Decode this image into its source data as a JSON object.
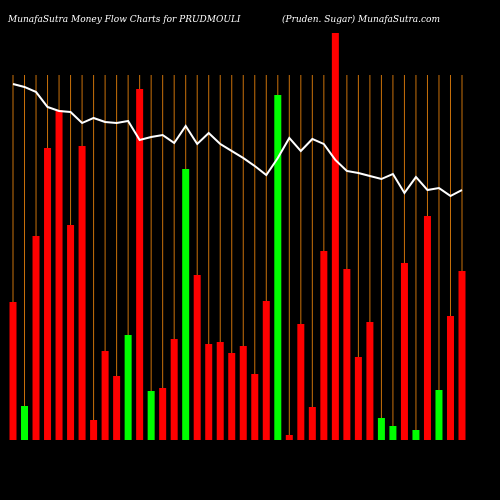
{
  "chart_data": {
    "type": "bar",
    "title": "MunafaSutra  Money Flow  Charts for PRUDMOULI",
    "subtitle": "(Pruden. Sugar) MunafaSutra.com",
    "categories": [
      null,
      null,
      null,
      null,
      null,
      null,
      null,
      null,
      null,
      null,
      null,
      null,
      null,
      null,
      null,
      null,
      null,
      null,
      null,
      null,
      null,
      null,
      null,
      null,
      null,
      null,
      null,
      null,
      null,
      null,
      null,
      null,
      null,
      null,
      null,
      null,
      null,
      null,
      null,
      null
    ],
    "ylim": [
      0,
      410
    ],
    "series": [
      {
        "kind": "bar",
        "values": [
          138,
          34,
          204,
          292,
          330,
          215,
          294,
          20,
          89,
          64,
          105,
          351,
          49,
          52,
          101,
          271,
          165,
          96,
          98,
          87,
          94,
          66,
          139,
          345,
          5,
          116,
          33,
          189,
          407,
          171,
          83,
          118,
          22,
          14,
          177,
          10,
          224,
          50,
          124,
          169
        ],
        "colors": [
          "#ff0000",
          "#00ff00",
          "#ff0000",
          "#ff0000",
          "#ff0000",
          "#ff0000",
          "#ff0000",
          "#ff0000",
          "#ff0000",
          "#ff0000",
          "#00ff00",
          "#ff0000",
          "#00ff00",
          "#ff0000",
          "#ff0000",
          "#00ff00",
          "#ff0000",
          "#ff0000",
          "#ff0000",
          "#ff0000",
          "#ff0000",
          "#ff0000",
          "#ff0000",
          "#00ff00",
          "#ff0000",
          "#ff0000",
          "#ff0000",
          "#ff0000",
          "#ff0000",
          "#ff0000",
          "#ff0000",
          "#ff0000",
          "#00ff00",
          "#00ff00",
          "#ff0000",
          "#00ff00",
          "#ff0000",
          "#00ff00",
          "#ff0000",
          "#ff0000"
        ]
      },
      {
        "kind": "line",
        "color": "#ffffff",
        "values": [
          356,
          353,
          348,
          333,
          329,
          328,
          317,
          322,
          318,
          317,
          319,
          300,
          303,
          305,
          297,
          314,
          296,
          307,
          296,
          289,
          282,
          274,
          265,
          282,
          302,
          289,
          301,
          296,
          280,
          269,
          267,
          264,
          261,
          266,
          247,
          263,
          250,
          252,
          244,
          250
        ]
      }
    ],
    "gridline_color": "#c8700a"
  }
}
